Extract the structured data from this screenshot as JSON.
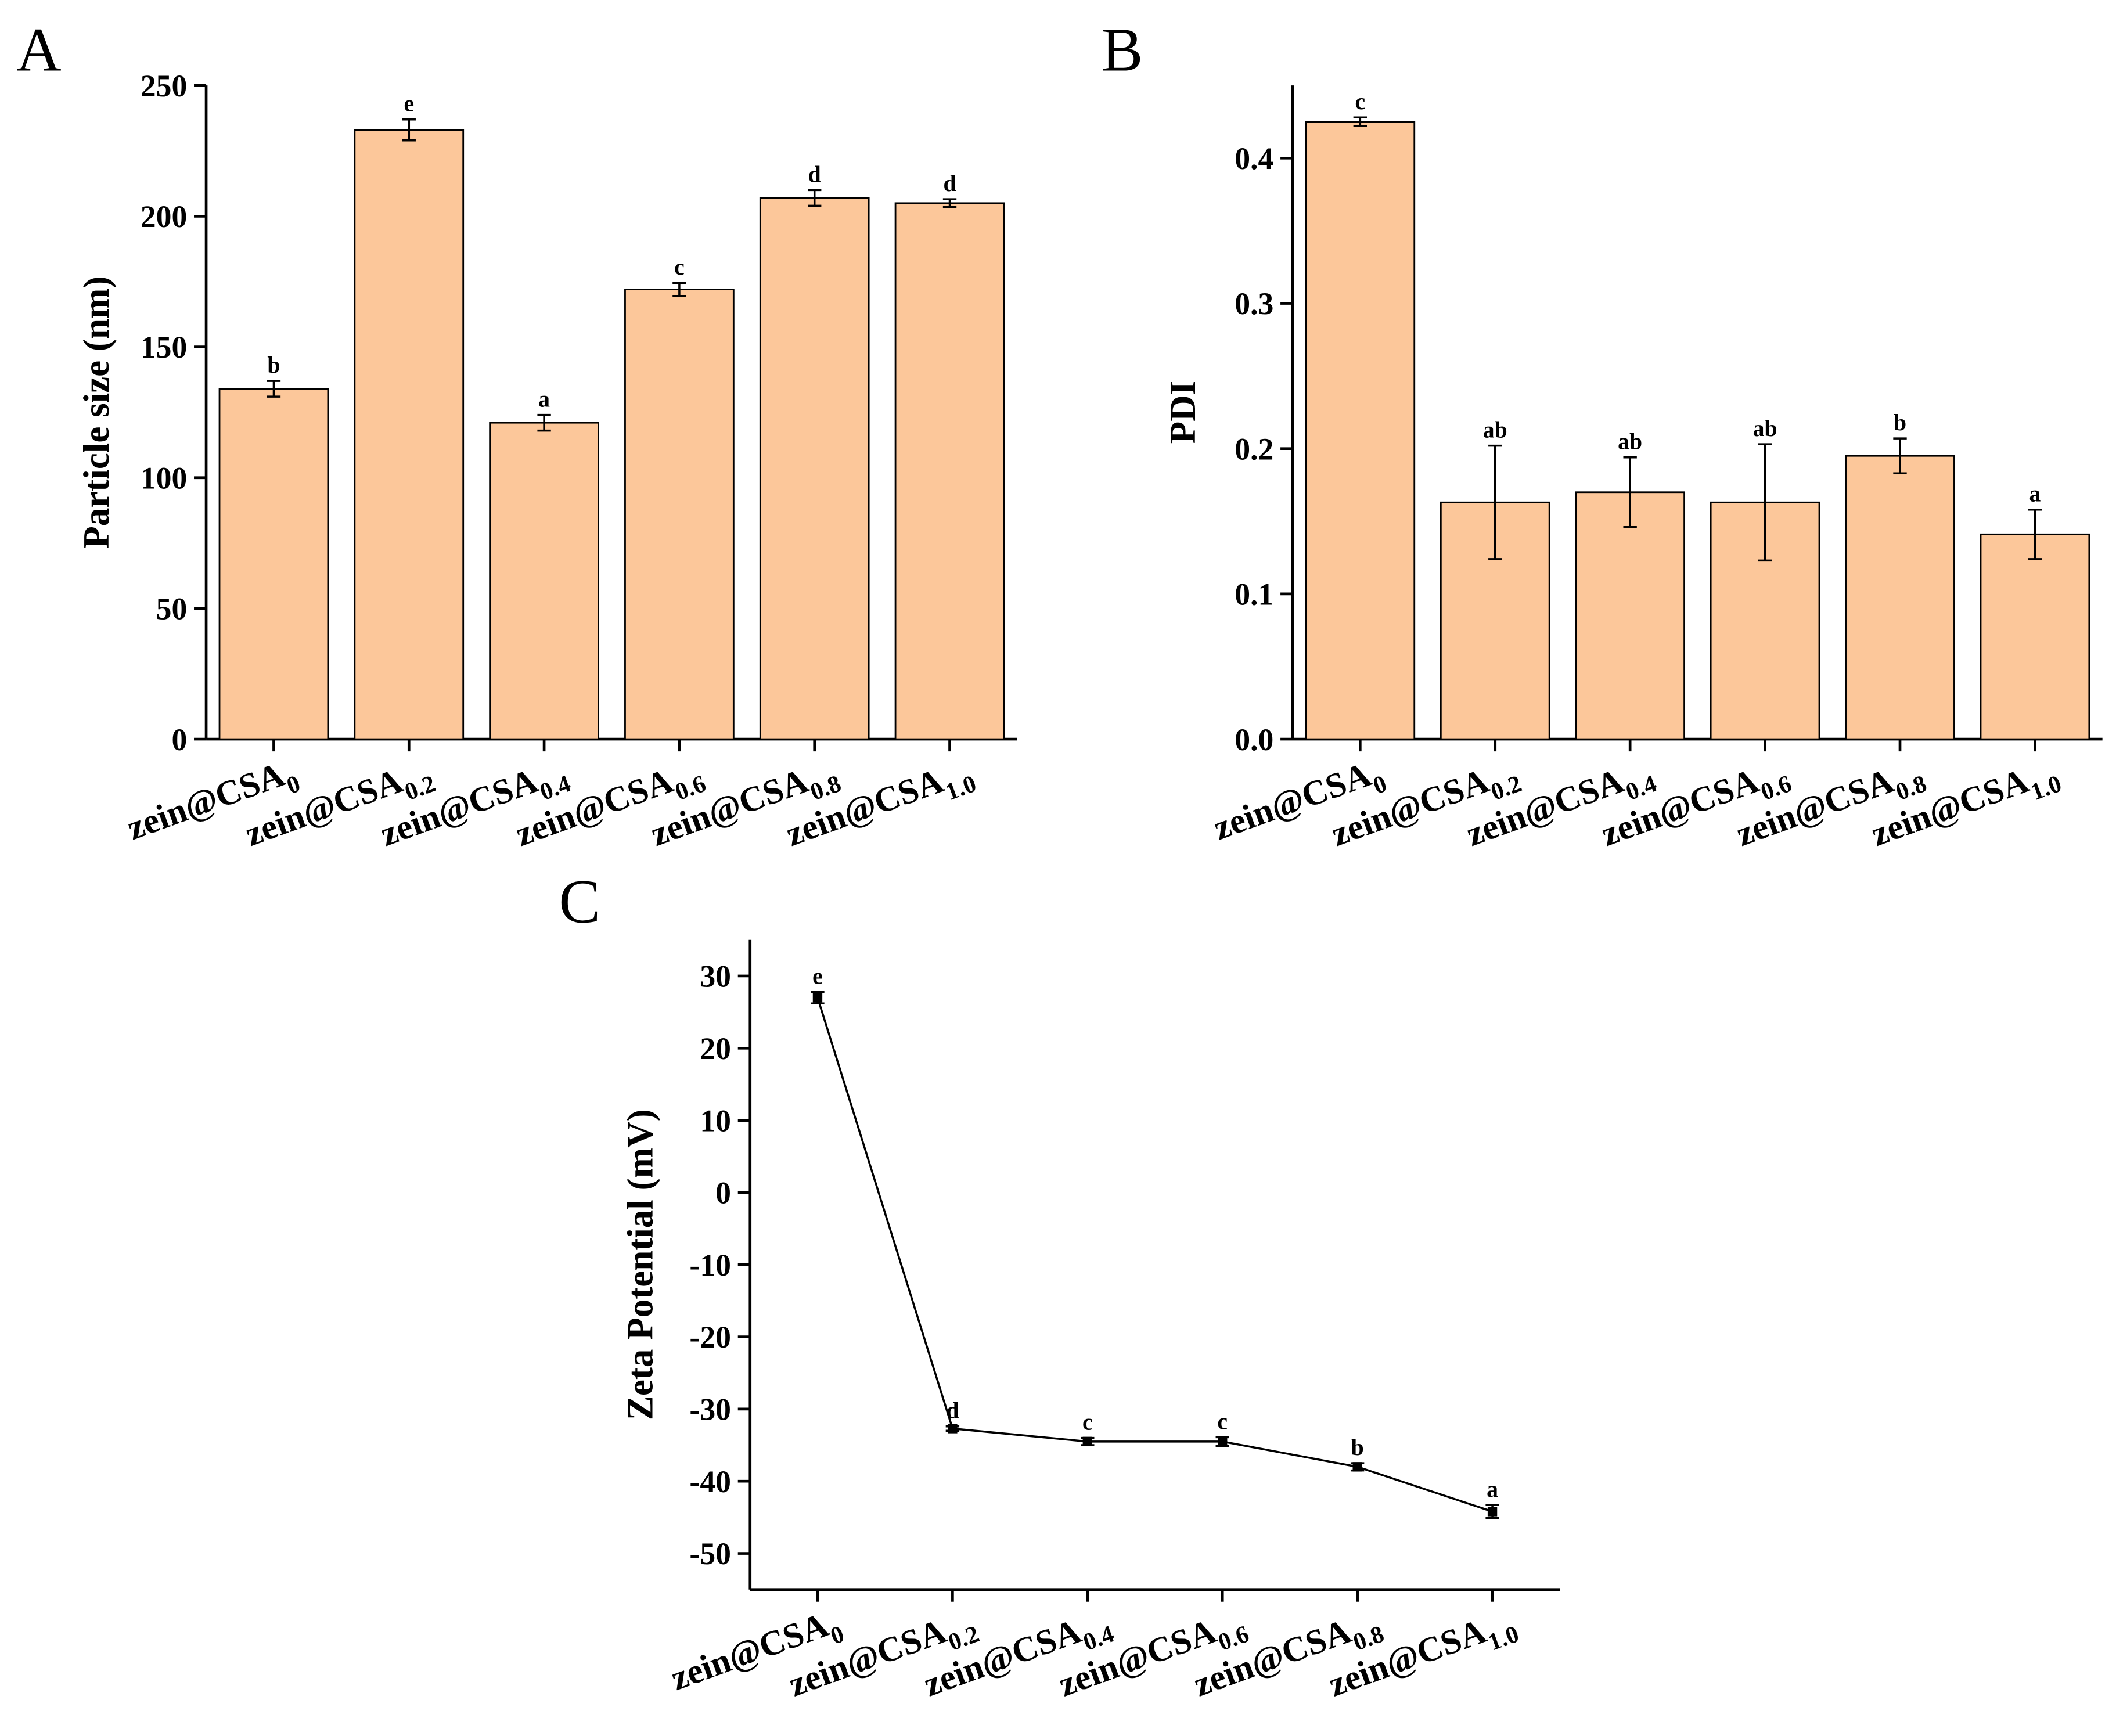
{
  "chart_data": [
    {
      "type": "bar",
      "panel": "A",
      "y_label": "Particle size (nm)",
      "categories": [
        "zein@CSA0",
        "zein@CSA0.2",
        "zein@CSA0.4",
        "zein@CSA0.6",
        "zein@CSA0.8",
        "zein@CSA1.0"
      ],
      "values": [
        134,
        233,
        121,
        172,
        207,
        205
      ],
      "errors": [
        3,
        4,
        3,
        2.5,
        3,
        1.5
      ],
      "annotations": [
        "b",
        "e",
        "a",
        "c",
        "d",
        "d"
      ],
      "color": "#fcc79a",
      "ylim": [
        0,
        250
      ],
      "yticks": [
        0,
        50,
        100,
        150,
        200,
        250
      ]
    },
    {
      "type": "bar",
      "panel": "B",
      "y_label": "PDI",
      "categories": [
        "zein@CSA0",
        "zein@CSA0.2",
        "zein@CSA0.4",
        "zein@CSA0.6",
        "zein@CSA0.8",
        "zein@CSA1.0"
      ],
      "values": [
        0.425,
        0.163,
        0.17,
        0.163,
        0.195,
        0.141
      ],
      "errors": [
        0.003,
        0.039,
        0.024,
        0.04,
        0.012,
        0.017
      ],
      "annotations": [
        "c",
        "ab",
        "ab",
        "ab",
        "b",
        "a"
      ],
      "color": "#fcc79a",
      "ylim": [
        0,
        0.45
      ],
      "yticks": [
        {
          "value": 0,
          "label": "0.0"
        },
        0.1,
        0.2,
        0.3,
        0.4
      ]
    },
    {
      "type": "line",
      "panel": "C",
      "y_label": "Zeta Potential (mV)",
      "categories": [
        "zein@CSA0",
        "zein@CSA0.2",
        "zein@CSA0.4",
        "zein@CSA0.6",
        "zein@CSA0.8",
        "zein@CSA1.0"
      ],
      "values": [
        27,
        -32.7,
        -34.5,
        -34.5,
        -38,
        -44.2
      ],
      "errors": [
        0.8,
        0.3,
        0.5,
        0.6,
        0.5,
        0.9
      ],
      "annotations": [
        "e",
        "d",
        "c",
        "c",
        "b",
        "a"
      ],
      "color": "#000000",
      "ylim": [
        -55,
        35
      ],
      "yticks": [
        -50,
        -40,
        -30,
        -20,
        -10,
        0,
        10,
        20,
        30
      ]
    }
  ]
}
